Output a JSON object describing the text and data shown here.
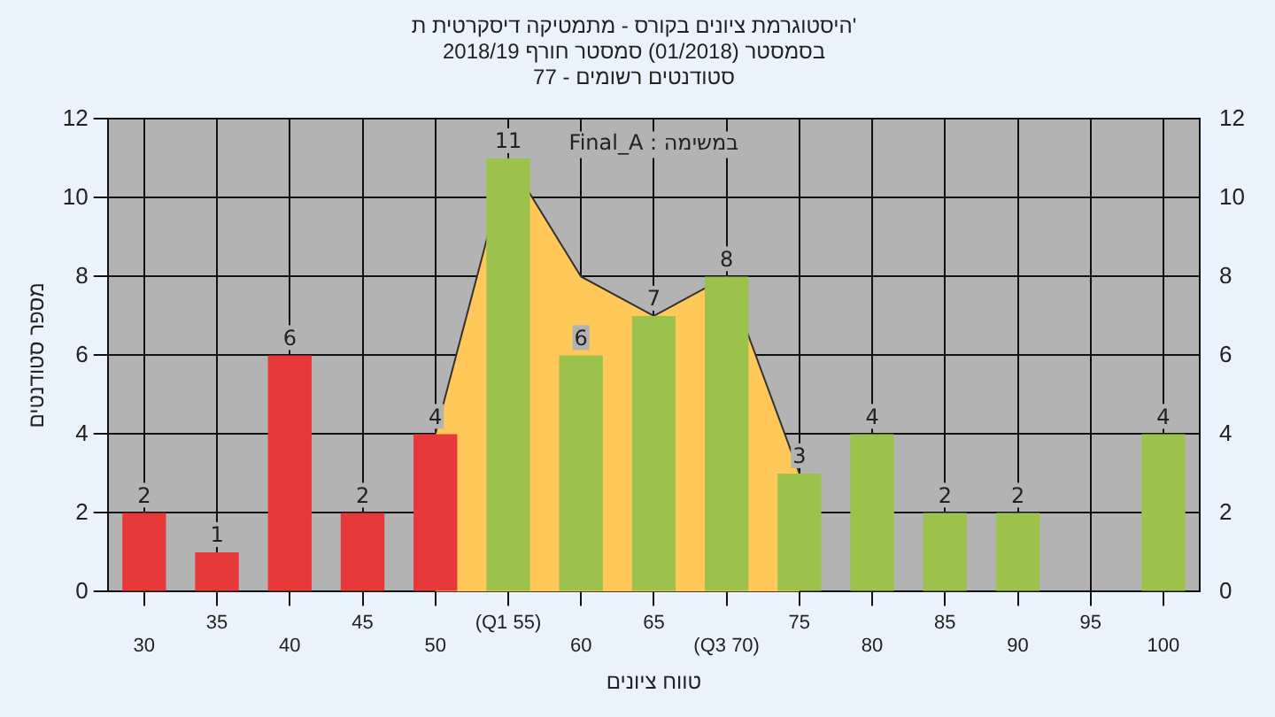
{
  "chart_data": {
    "type": "bar",
    "title": "היסטוגרמת ציונים בקורס - מתמטיקה דיסקרטית ת'\nבסמסטר (01/2018) סמסטר חורף 2018/19\nסטודנטים רשומים - 77",
    "xlabel": "טווח ציונים",
    "ylabel": "מספר סטודנטים",
    "annotations": [
      "במשימה : Final_A"
    ],
    "categories": [
      "30",
      "35",
      "40",
      "45",
      "50",
      "(Q1 55)",
      "60",
      "65",
      "(Q3 70)",
      "75",
      "80",
      "85",
      "90",
      "95",
      "100"
    ],
    "series": [
      {
        "values": [
          2,
          1,
          6,
          2,
          4,
          11,
          6,
          7,
          8,
          3,
          4,
          2,
          2,
          null,
          4
        ],
        "value_labels": [
          "2",
          "1",
          "6",
          "2",
          "4",
          "11",
          "6",
          "7",
          "8",
          "3",
          "4",
          "2",
          "2",
          null,
          "4"
        ],
        "colors": [
          "#e8393a",
          "#e8393a",
          "#e8393a",
          "#e8393a",
          "#e8393a",
          "#9dc24c",
          "#9dc24c",
          "#9dc24c",
          "#9dc24c",
          "#9dc24c",
          "#9dc24c",
          "#9dc24c",
          "#9dc24c",
          "#9dc24c",
          "#9dc24c"
        ]
      },
      {
        "type": "area",
        "color": "#ffc858",
        "values": [
          null,
          null,
          null,
          null,
          4,
          11,
          8,
          7,
          8,
          3,
          null,
          null,
          null,
          null,
          null
        ]
      }
    ],
    "ylim": [
      0,
      12
    ],
    "yticks": [
      0,
      2,
      4,
      6,
      8,
      10,
      12
    ],
    "y2lim": [
      0,
      12
    ],
    "y2ticks": [
      0,
      2,
      4,
      6,
      8,
      10,
      12
    ],
    "grid": true,
    "legend": false
  }
}
